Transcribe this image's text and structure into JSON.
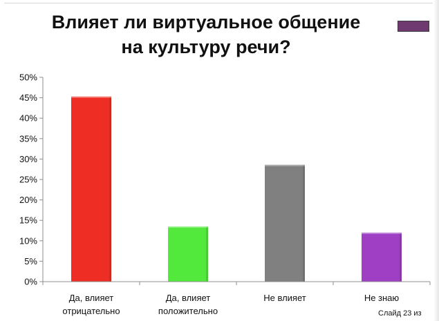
{
  "slide": {
    "title_line1": "Влияет ли виртуальное общение",
    "title_line2": "на культуру речи?",
    "title_swatch_color": "#6e3a70",
    "footer": "Слайд 23 из"
  },
  "chart_data": {
    "type": "bar",
    "title": "Влияет ли виртуальное общение на культуру речи?",
    "xlabel": "",
    "ylabel": "",
    "ylim": [
      0,
      50
    ],
    "yticks": [
      0,
      5,
      10,
      15,
      20,
      25,
      30,
      35,
      40,
      45,
      50
    ],
    "ytick_labels": [
      "0%",
      "5%",
      "10%",
      "15%",
      "20%",
      "25%",
      "30%",
      "35%",
      "40%",
      "45%",
      "50%"
    ],
    "categories": [
      [
        "Да, влияет",
        "отрицательно"
      ],
      [
        "Да, влияет",
        "положительно"
      ],
      [
        "Не влияет"
      ],
      [
        "Не знаю"
      ]
    ],
    "values": [
      45.3,
      13.5,
      28.6,
      12.0
    ],
    "colors": [
      "#ee2e24",
      "#52e83c",
      "#808080",
      "#9e3fc4"
    ],
    "grid": false,
    "legend": "none"
  }
}
